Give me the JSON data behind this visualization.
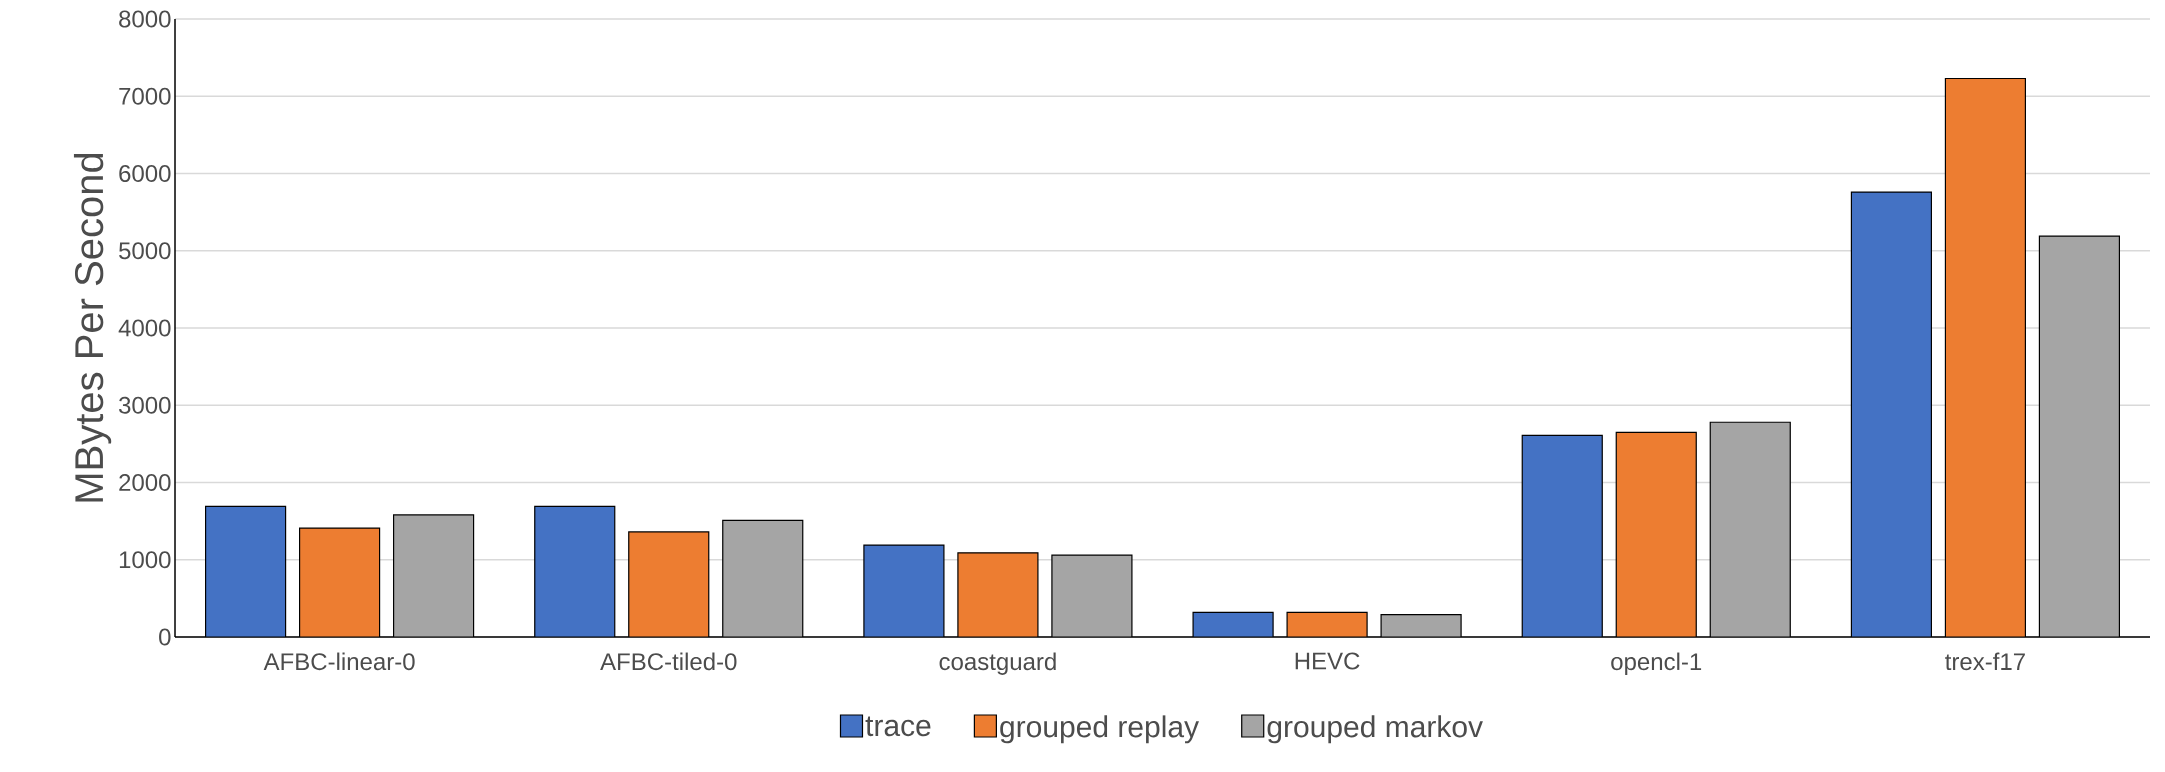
{
  "chart_data": {
    "type": "bar",
    "ylabel": "MBytes Per Second",
    "categories": [
      "AFBC-linear-0",
      "AFBC-tiled-0",
      "coastguard",
      "HEVC",
      "opencl-1",
      "trex-f17"
    ],
    "series": [
      {
        "name": "trace",
        "color": "#4472c4",
        "values": [
          1690,
          1690,
          1190,
          320,
          2610,
          5760
        ]
      },
      {
        "name": "grouped replay",
        "color": "#ed7d31",
        "values": [
          1410,
          1360,
          1090,
          320,
          2650,
          7230
        ]
      },
      {
        "name": "grouped markov",
        "color": "#a5a5a5",
        "values": [
          1580,
          1510,
          1060,
          290,
          2780,
          5190
        ]
      }
    ],
    "ylim": [
      0,
      8000
    ],
    "yticks": [
      0,
      1000,
      2000,
      3000,
      4000,
      5000,
      6000,
      7000,
      8000
    ],
    "grid": "y",
    "legend": "bottom"
  }
}
